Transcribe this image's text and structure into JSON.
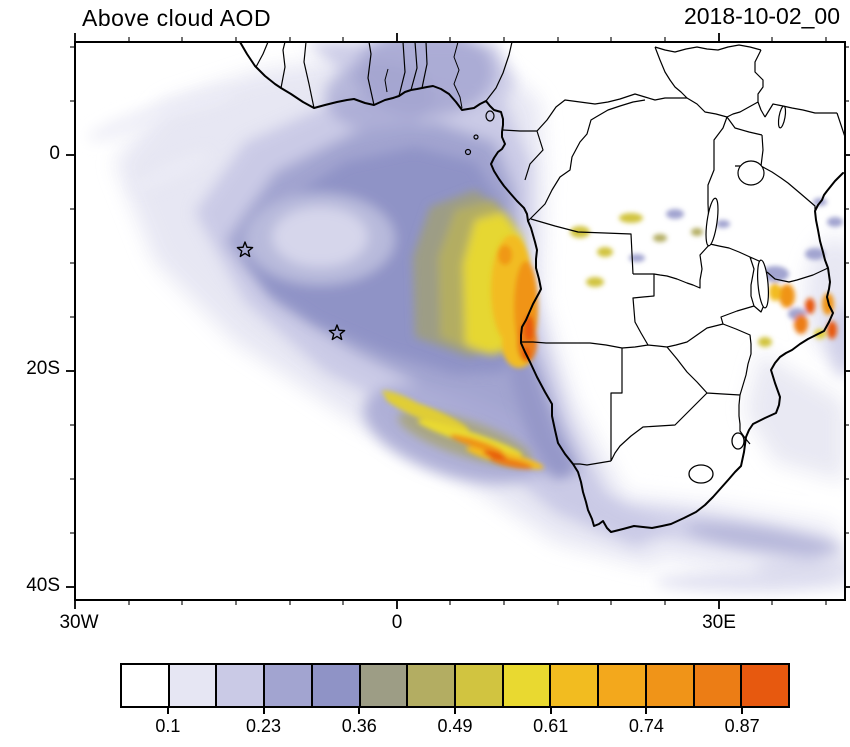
{
  "header": {
    "title": "Above cloud AOD",
    "date": "2018-10-02_00"
  },
  "axes": {
    "y_ticks": [
      "0",
      "20S",
      "40S"
    ],
    "x_ticks": [
      "30W",
      "0",
      "30E"
    ]
  },
  "colorbar": {
    "labels": [
      "0.1",
      "0.23",
      "0.36",
      "0.49",
      "0.61",
      "0.74",
      "0.87"
    ],
    "colors": [
      "#ffffff",
      "#e6e6f3",
      "#cacae6",
      "#a2a4d0",
      "#8f93c6",
      "#9d9d85",
      "#b3ad62",
      "#d1c440",
      "#e9d930",
      "#f2bc20",
      "#f3a81c",
      "#f09418",
      "#ec7d15",
      "#e7590f"
    ]
  },
  "chart_data": {
    "type": "heatmap",
    "title": "Above cloud AOD",
    "timestamp": "2018-10-02_00",
    "x_axis": {
      "tick_labels": [
        "30W",
        "0",
        "30E"
      ],
      "approx_range_deg_lon": [
        -30,
        42
      ]
    },
    "y_axis": {
      "tick_labels": [
        "0",
        "20S",
        "40S"
      ],
      "approx_range_deg_lat": [
        10.5,
        -41
      ]
    },
    "colorbar_levels": [
      0.1,
      0.23,
      0.36,
      0.49,
      0.61,
      0.74,
      0.87
    ],
    "colorbar_colors": [
      "#ffffff",
      "#e6e6f3",
      "#cacae6",
      "#a2a4d0",
      "#8f93c6",
      "#9d9d85",
      "#b3ad62",
      "#d1c440",
      "#e9d930",
      "#f2bc20",
      "#f3a81c",
      "#f09418",
      "#ec7d15",
      "#e7590f"
    ],
    "field_summary": [
      {
        "region": "SE Atlantic stratocumulus deck, ~25W-8E / 0-20S",
        "approx_aod": "0.1-0.4"
      },
      {
        "region": "Pale minimum patch near 8W / 8S",
        "approx_aod": "0.1-0.2"
      },
      {
        "region": "Angola-Namibia coastal plume, ~5E-13E / 5-18S",
        "approx_aod": "0.5-0.9+"
      },
      {
        "region": "Diagonal streaks SW of Namibia, ~5W-10E / 22-28S",
        "approx_aod": "0.3-0.8"
      },
      {
        "region": "Yellow/purple specks over DRC-Angola interior, ~13E-25E / 2-10S",
        "approx_aod": "0.2-0.5"
      },
      {
        "region": "N Mozambique / Lake Malawi cluster, ~33E-41E / 9-18S",
        "approx_aod": "0.4-0.9"
      },
      {
        "region": "South African south-coast band, ~20E-42E / 30-38S",
        "approx_aod": "0.1-0.3"
      }
    ],
    "markers": [
      {
        "type": "star",
        "approx_lon_deg": -14.2,
        "approx_lat_deg": -8.8
      },
      {
        "type": "star",
        "approx_lon_deg": -5.6,
        "approx_lat_deg": -16.4
      }
    ],
    "grid": "off",
    "legend_position": "horizontal colorbar below plot"
  }
}
